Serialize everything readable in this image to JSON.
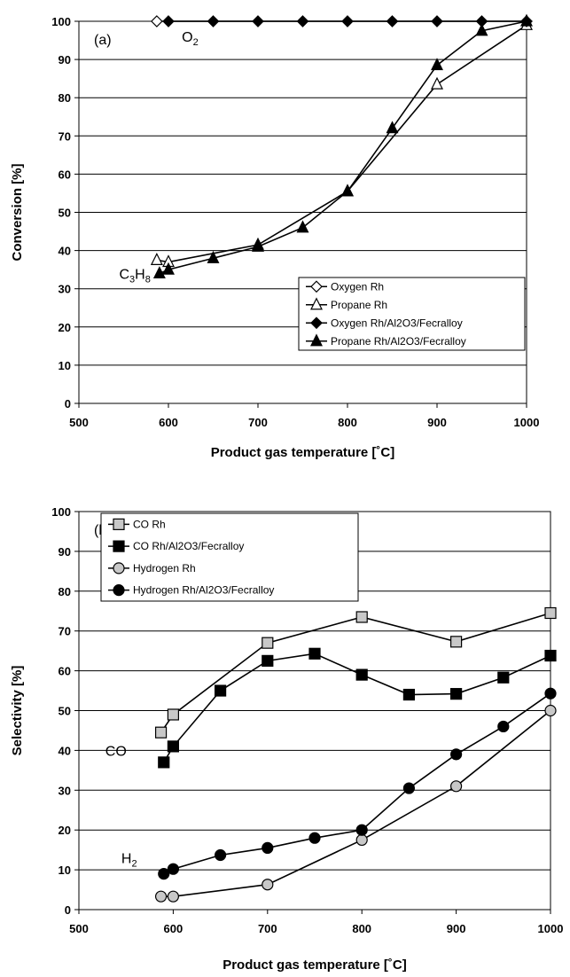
{
  "chart_data": [
    {
      "type": "line",
      "panel_label": "(a)",
      "xlabel": "Product gas temperature [˚C]",
      "ylabel": "Conversion [%]",
      "xlim": [
        500,
        1000
      ],
      "ylim": [
        0,
        100
      ],
      "xticks": [
        500,
        600,
        700,
        800,
        900,
        1000
      ],
      "yticks": [
        0,
        10,
        20,
        30,
        40,
        50,
        60,
        70,
        80,
        90,
        100
      ],
      "grid": "horizontal",
      "legend_position": "bottom-right",
      "annotations": [
        {
          "main": "O",
          "sub": "2",
          "x": 615,
          "y": 96
        },
        {
          "main": "C",
          "sub3": "3",
          "mid": "H",
          "sub": "8",
          "x": 545,
          "y": 34
        }
      ],
      "series": [
        {
          "name": "Oxygen Rh",
          "marker": "diamond",
          "fill": "#ffffff",
          "x": [
            587,
            1000
          ],
          "y": [
            100,
            100
          ]
        },
        {
          "name": "Propane Rh",
          "marker": "triangle",
          "fill": "#ffffff",
          "x": [
            587,
            600,
            700,
            800,
            900,
            1000
          ],
          "y": [
            37.5,
            37.0,
            41.5,
            55.5,
            83.5,
            99.0
          ]
        },
        {
          "name": "Oxygen Rh/Al2O3/Fecralloy",
          "marker": "diamond",
          "fill": "#000000",
          "x": [
            600,
            650,
            700,
            750,
            800,
            850,
            900,
            950,
            1000
          ],
          "y": [
            100,
            100,
            100,
            100,
            100,
            100,
            100,
            100,
            100
          ]
        },
        {
          "name": "Propane Rh/Al2O3/Fecralloy",
          "marker": "triangle",
          "fill": "#000000",
          "x": [
            590,
            600,
            650,
            700,
            750,
            800,
            850,
            900,
            950,
            1000
          ],
          "y": [
            34.0,
            35.0,
            38.0,
            41.0,
            46.0,
            55.5,
            72.0,
            88.5,
            97.5,
            100.0
          ]
        }
      ]
    },
    {
      "type": "line",
      "panel_label": "(b)",
      "xlabel": "Product gas temperature [˚C]",
      "ylabel": "Selectivity [%]",
      "xlim": [
        500,
        1000
      ],
      "ylim": [
        0,
        100
      ],
      "xticks": [
        500,
        600,
        700,
        800,
        900,
        1000
      ],
      "yticks": [
        0,
        10,
        20,
        30,
        40,
        50,
        60,
        70,
        80,
        90,
        100
      ],
      "grid": "horizontal",
      "legend_position": "top-left",
      "annotations": [
        {
          "main": "CO",
          "x": 528,
          "y": 40
        },
        {
          "main": "H",
          "sub": "2",
          "x": 545,
          "y": 13
        }
      ],
      "series": [
        {
          "name": "CO Rh",
          "marker": "square",
          "fill": "#c8c8c8",
          "x": [
            587,
            600,
            700,
            800,
            900,
            1000
          ],
          "y": [
            44.5,
            49.0,
            67.0,
            73.5,
            67.3,
            74.5
          ]
        },
        {
          "name": "CO Rh/Al2O3/Fecralloy",
          "marker": "square",
          "fill": "#000000",
          "x": [
            590,
            600,
            650,
            700,
            750,
            800,
            850,
            900,
            950,
            1000
          ],
          "y": [
            37.0,
            41.0,
            55.0,
            62.5,
            64.3,
            59.0,
            54.0,
            54.2,
            58.3,
            63.8
          ]
        },
        {
          "name": "Hydrogen Rh",
          "marker": "circle",
          "fill": "#c8c8c8",
          "x": [
            587,
            600,
            700,
            800,
            900,
            1000
          ],
          "y": [
            3.3,
            3.3,
            6.3,
            17.5,
            31.0,
            50.0
          ]
        },
        {
          "name": "Hydrogen Rh/Al2O3/Fecralloy",
          "marker": "circle",
          "fill": "#000000",
          "x": [
            590,
            600,
            650,
            700,
            750,
            800,
            850,
            900,
            950,
            1000
          ],
          "y": [
            9.0,
            10.2,
            13.7,
            15.5,
            18.0,
            20.0,
            30.5,
            39.0,
            46.0,
            54.3
          ]
        }
      ]
    }
  ]
}
